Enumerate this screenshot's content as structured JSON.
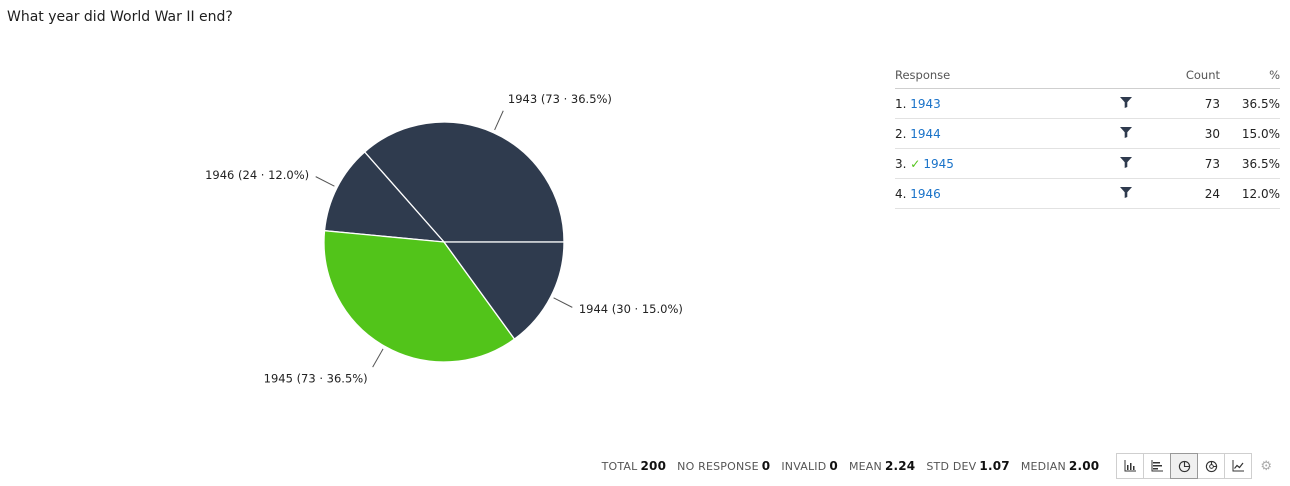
{
  "question": "What year did World War II end?",
  "chart_data": {
    "type": "pie",
    "slices": [
      {
        "label": "1943 (73 · 36.5%)",
        "value": 73,
        "percent": 36.5,
        "color": "#2f3b4e"
      },
      {
        "label": "1946 (24 · 12.0%)",
        "value": 24,
        "percent": 12.0,
        "color": "#2f3b4e"
      },
      {
        "label": "1945 (73 · 36.5%)",
        "value": 73,
        "percent": 36.5,
        "color": "#52c41a"
      },
      {
        "label": "1944 (30 · 15.0%)",
        "value": 30,
        "percent": 15.0,
        "color": "#2f3b4e"
      }
    ]
  },
  "table": {
    "headers": {
      "response": "Response",
      "count": "Count",
      "percent": "%"
    },
    "rows": [
      {
        "num": "1.",
        "label": "1943",
        "correct": false,
        "count": "73",
        "percent": "36.5%"
      },
      {
        "num": "2.",
        "label": "1944",
        "correct": false,
        "count": "30",
        "percent": "15.0%"
      },
      {
        "num": "3.",
        "label": "1945",
        "correct": true,
        "count": "73",
        "percent": "36.5%"
      },
      {
        "num": "4.",
        "label": "1946",
        "correct": false,
        "count": "24",
        "percent": "12.0%"
      }
    ]
  },
  "stats": {
    "total_label": "TOTAL",
    "total": "200",
    "no_response_label": "NO RESPONSE",
    "no_response": "0",
    "invalid_label": "INVALID",
    "invalid": "0",
    "mean_label": "MEAN",
    "mean": "2.24",
    "std_dev_label": "STD DEV",
    "std_dev": "1.07",
    "median_label": "MEDIAN",
    "median": "2.00"
  },
  "check_mark": "✓",
  "view_buttons": [
    "bar-chart-icon",
    "horizontal-bar-icon",
    "pie-chart-icon",
    "donut-chart-icon",
    "line-chart-icon"
  ],
  "active_view": "pie-chart-icon"
}
